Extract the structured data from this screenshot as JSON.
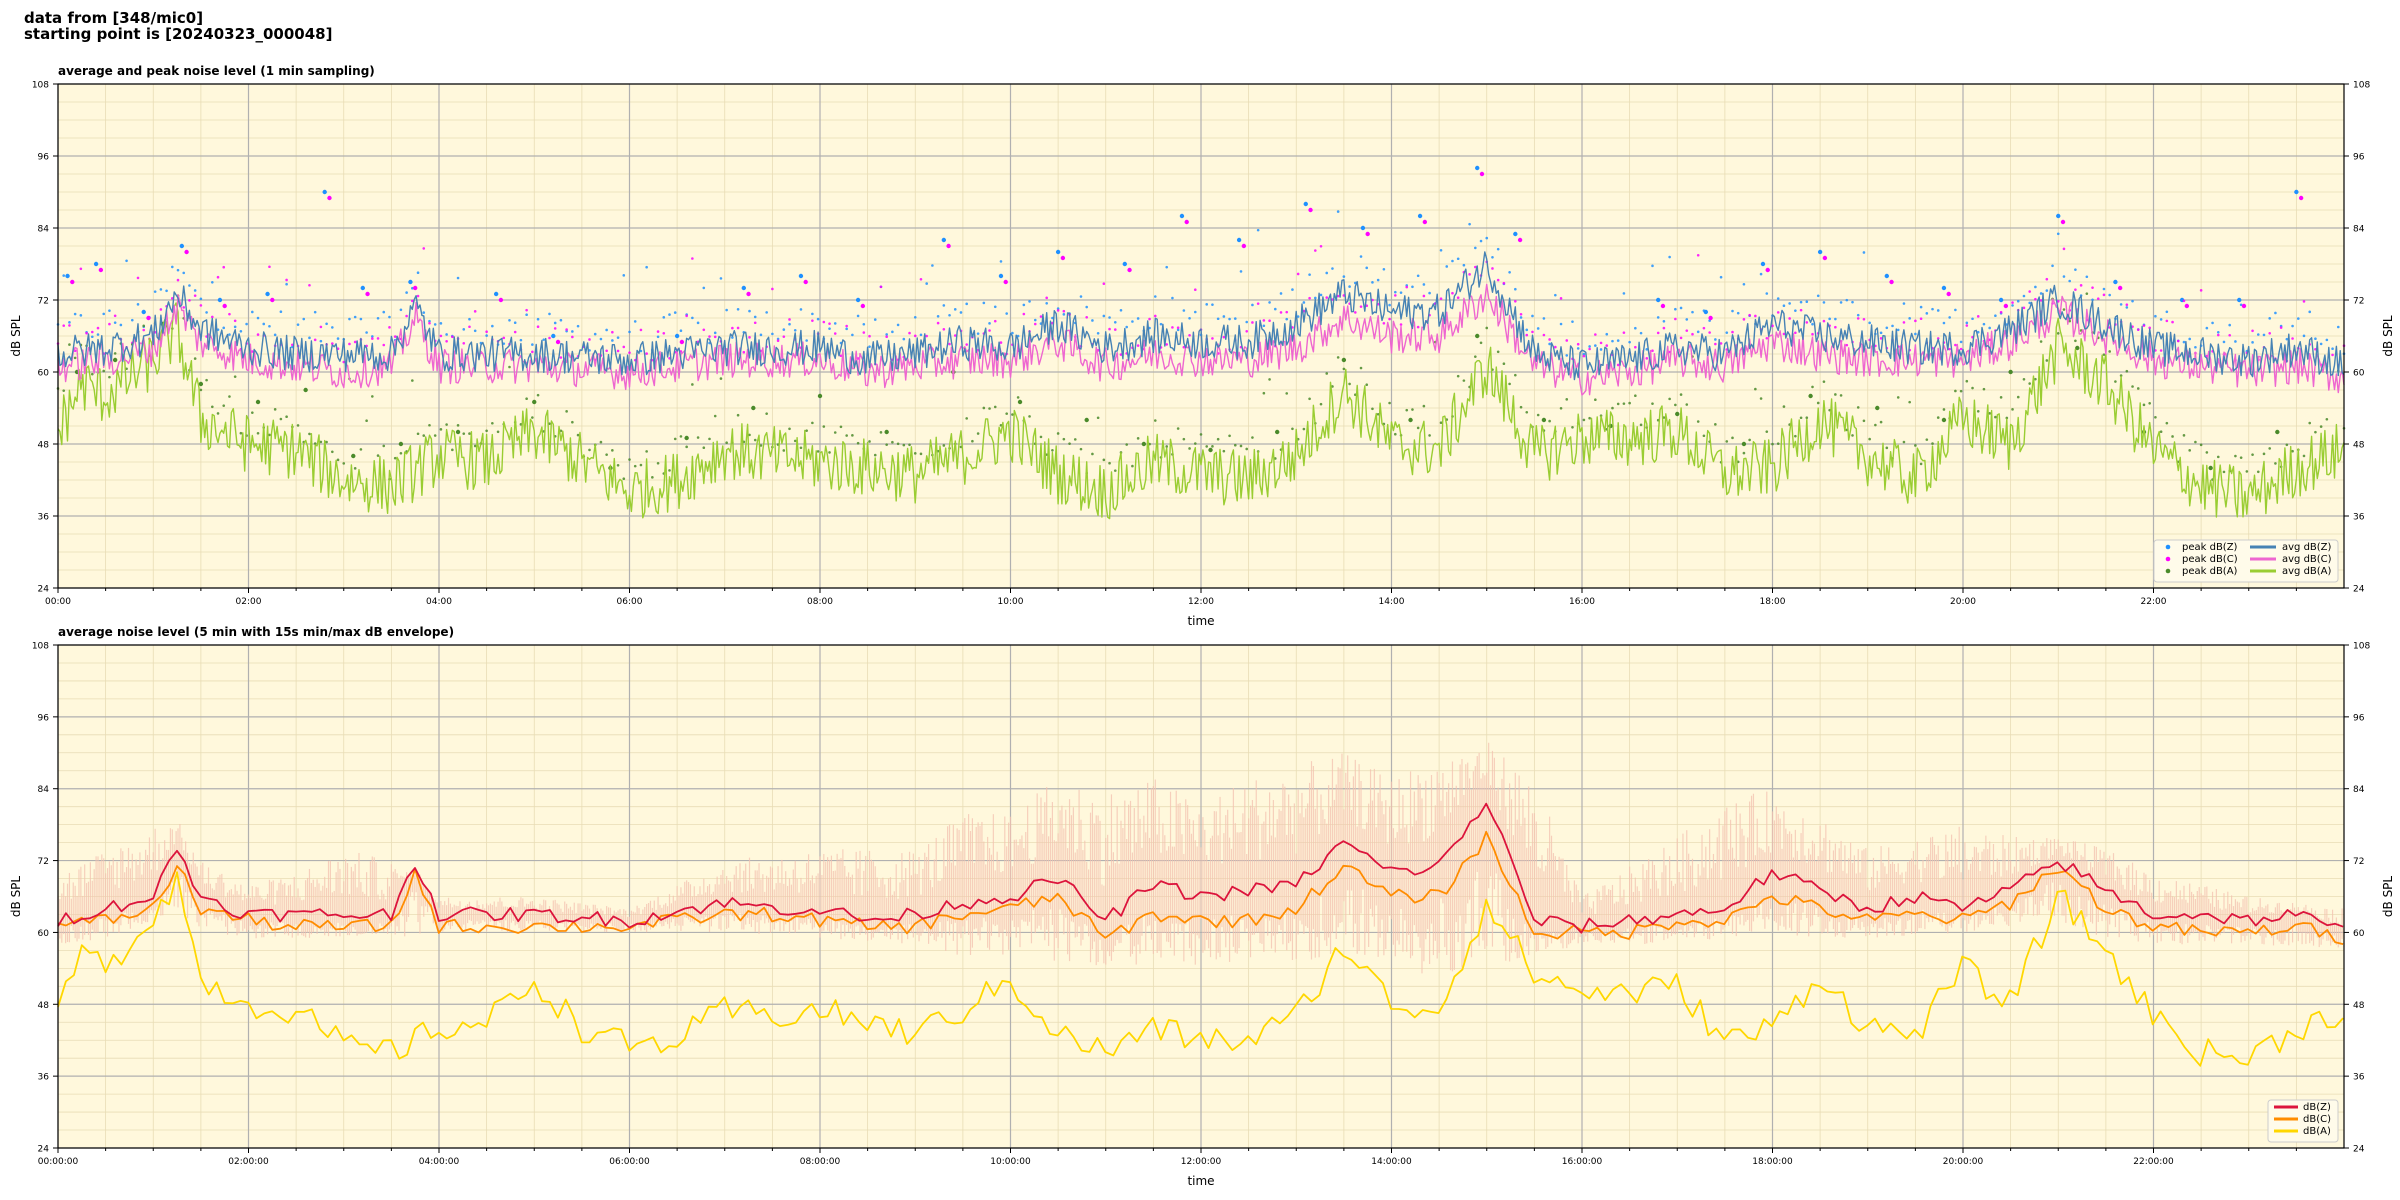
{
  "header": {
    "line1": "data from [348/mic0]",
    "line2": "starting point is [20240323_000048]"
  },
  "colors": {
    "background": "#fff8dc",
    "zavg": "#4682b4",
    "cavg": "#ee66d0",
    "aavg": "#9acd32",
    "zpeak": "#1e90ff",
    "cpeak": "#ff00ff",
    "apeak": "#4a8a2a",
    "z5": "#dc143c",
    "c5": "#ff8c00",
    "a5": "#ffd700",
    "envelope": "#f4c2b0"
  },
  "chart_data": [
    {
      "type": "line",
      "title": "average and peak noise level (1 min sampling)",
      "xlabel": "time",
      "ylabel": "dB SPL",
      "ylim": [
        24,
        108
      ],
      "yticks": [
        "24",
        "36",
        "48",
        "60",
        "72",
        "84",
        "96",
        "108"
      ],
      "xlim_hours": [
        0,
        24
      ],
      "xticks": [
        "00:00",
        "02:00",
        "04:00",
        "06:00",
        "08:00",
        "10:00",
        "12:00",
        "14:00",
        "16:00",
        "18:00",
        "20:00",
        "22:00"
      ],
      "grid": true,
      "legend_position": "bottom-right",
      "legend": {
        "markers": [
          "peak dB(Z)",
          "peak dB(C)",
          "peak dB(A)"
        ],
        "lines": [
          "avg dB(Z)",
          "avg dB(C)",
          "avg dB(A)"
        ]
      },
      "series": [
        {
          "name": "avg dB(Z)",
          "x": [
            0,
            0.5,
            1,
            1.25,
            1.5,
            2,
            2.5,
            3,
            3.5,
            3.75,
            4,
            5,
            6,
            7,
            7.5,
            8,
            8.5,
            9,
            9.5,
            10,
            10.5,
            11,
            11.5,
            12,
            12.5,
            13,
            13.5,
            14,
            14.5,
            15,
            15.5,
            16,
            16.5,
            17,
            17.5,
            18,
            18.5,
            19,
            19.5,
            20,
            20.5,
            21,
            21.5,
            22,
            22.5,
            23,
            23.5,
            24
          ],
          "values": [
            63,
            64,
            66,
            73,
            67,
            64,
            63,
            63,
            63,
            71,
            63,
            63,
            62,
            64,
            64,
            64,
            62,
            63,
            65,
            64,
            68,
            64,
            66,
            65,
            65,
            68,
            73,
            70,
            70,
            78,
            63,
            61,
            62,
            64,
            63,
            68,
            66,
            65,
            64,
            64,
            67,
            72,
            68,
            64,
            63,
            62,
            64,
            61
          ]
        },
        {
          "name": "avg dB(C)",
          "x": [
            0,
            0.5,
            1,
            1.25,
            1.5,
            2,
            2.5,
            3,
            3.5,
            3.75,
            4,
            5,
            6,
            7,
            7.5,
            8,
            8.5,
            9,
            9.5,
            10,
            10.5,
            11,
            11.5,
            12,
            12.5,
            13,
            13.5,
            14,
            14.5,
            15,
            15.5,
            16,
            16.5,
            17,
            17.5,
            18,
            18.5,
            19,
            19.5,
            20,
            20.5,
            21,
            21.5,
            22,
            22.5,
            23,
            23.5,
            24
          ],
          "values": [
            61,
            62,
            64,
            71,
            65,
            62,
            61,
            60,
            61,
            69,
            61,
            61,
            60,
            62,
            62,
            62,
            60,
            61,
            62,
            62,
            65,
            61,
            63,
            62,
            62,
            64,
            69,
            66,
            66,
            73,
            61,
            59,
            60,
            62,
            61,
            65,
            63,
            62,
            62,
            62,
            65,
            70,
            66,
            62,
            61,
            60,
            61,
            59
          ]
        },
        {
          "name": "avg dB(A)",
          "x": [
            0,
            0.25,
            0.5,
            0.75,
            1,
            1.25,
            1.5,
            2,
            2.5,
            3,
            3.5,
            4,
            4.5,
            5,
            5.5,
            6,
            6.5,
            7,
            7.5,
            8,
            8.5,
            9,
            9.5,
            10,
            10.5,
            11,
            11.5,
            12,
            12.5,
            13,
            13.5,
            14,
            14.5,
            15,
            15.5,
            16,
            16.5,
            17,
            17.5,
            18,
            18.5,
            19,
            19.5,
            20,
            20.5,
            21,
            21.5,
            22,
            22.5,
            23,
            23.5,
            24
          ],
          "values": [
            50,
            58,
            56,
            59,
            62,
            67,
            52,
            48,
            47,
            42,
            41,
            46,
            45,
            50,
            45,
            40,
            42,
            47,
            46,
            45,
            44,
            43,
            46,
            50,
            43,
            40,
            45,
            43,
            42,
            46,
            57,
            48,
            47,
            61,
            46,
            49,
            49,
            50,
            43,
            44,
            52,
            46,
            42,
            52,
            48,
            64,
            58,
            47,
            41,
            39,
            44,
            47
          ]
        },
        {
          "name": "peak dB(Z)",
          "x": [
            0.1,
            0.4,
            0.9,
            1.3,
            1.7,
            2.2,
            2.8,
            3.2,
            3.7,
            4.6,
            5.2,
            6.5,
            7.2,
            7.8,
            8.4,
            9.3,
            9.9,
            10.5,
            11.2,
            11.8,
            12.4,
            13.1,
            13.7,
            14.3,
            14.9,
            15.3,
            16.8,
            17.3,
            17.9,
            18.5,
            19.2,
            19.8,
            20.4,
            21.0,
            21.6,
            22.3,
            22.9,
            23.5
          ],
          "values": [
            76,
            78,
            70,
            81,
            72,
            73,
            90,
            74,
            75,
            73,
            66,
            66,
            74,
            76,
            72,
            82,
            76,
            80,
            78,
            86,
            82,
            88,
            84,
            86,
            94,
            83,
            72,
            70,
            78,
            80,
            76,
            74,
            72,
            86,
            75,
            72,
            72,
            90
          ]
        },
        {
          "name": "peak dB(C)",
          "x": [
            0.15,
            0.45,
            0.95,
            1.35,
            1.75,
            2.25,
            2.85,
            3.25,
            3.75,
            4.65,
            5.25,
            6.55,
            7.25,
            7.85,
            8.45,
            9.35,
            9.95,
            10.55,
            11.25,
            11.85,
            12.45,
            13.15,
            13.75,
            14.35,
            14.95,
            15.35,
            16.85,
            17.35,
            17.95,
            18.55,
            19.25,
            19.85,
            20.45,
            21.05,
            21.65,
            22.35,
            22.95,
            23.55
          ],
          "values": [
            75,
            77,
            69,
            80,
            71,
            72,
            89,
            73,
            74,
            72,
            65,
            65,
            73,
            75,
            71,
            81,
            75,
            79,
            77,
            85,
            81,
            87,
            83,
            85,
            93,
            82,
            71,
            69,
            77,
            79,
            75,
            73,
            71,
            85,
            74,
            71,
            71,
            89
          ]
        },
        {
          "name": "peak dB(A)",
          "x": [
            0.2,
            0.6,
            1.1,
            1.5,
            2.1,
            2.6,
            3.1,
            3.6,
            4.2,
            5.0,
            5.8,
            6.6,
            7.3,
            8.0,
            8.7,
            9.4,
            10.1,
            10.8,
            11.4,
            12.1,
            12.8,
            13.5,
            14.2,
            14.9,
            15.6,
            16.3,
            17.0,
            17.7,
            18.4,
            19.1,
            19.8,
            20.5,
            21.2,
            21.9,
            22.6,
            23.3
          ],
          "values": [
            60,
            62,
            68,
            58,
            55,
            57,
            46,
            48,
            50,
            55,
            44,
            49,
            54,
            56,
            50,
            60,
            55,
            52,
            48,
            47,
            50,
            62,
            52,
            66,
            52,
            51,
            53,
            48,
            56,
            54,
            52,
            60,
            64,
            50,
            44,
            50
          ]
        }
      ]
    },
    {
      "type": "area",
      "title": "average noise level (5 min with 15s min/max dB envelope)",
      "xlabel": "time",
      "ylabel": "dB SPL",
      "ylim": [
        24,
        108
      ],
      "yticks": [
        "24",
        "36",
        "48",
        "60",
        "72",
        "84",
        "96",
        "108"
      ],
      "xlim_hours": [
        0,
        24
      ],
      "xticks": [
        "00:00:00",
        "02:00:00",
        "04:00:00",
        "06:00:00",
        "08:00:00",
        "10:00:00",
        "12:00:00",
        "14:00:00",
        "16:00:00",
        "18:00:00",
        "20:00:00",
        "22:00:00"
      ],
      "grid": true,
      "legend_position": "bottom-right",
      "legend": {
        "lines": [
          "dB(Z)",
          "dB(C)",
          "dB(A)"
        ]
      },
      "envelope": {
        "x": [
          0,
          0.5,
          1,
          1.25,
          1.5,
          2,
          2.5,
          3,
          3.5,
          4,
          5,
          6,
          7,
          8,
          9,
          9.5,
          10,
          10.5,
          11,
          11.5,
          12,
          12.5,
          13,
          13.5,
          14,
          14.5,
          15,
          15.5,
          16,
          17,
          17.5,
          18,
          18.5,
          19,
          20,
          20.5,
          21,
          21.5,
          22,
          23,
          24
        ],
        "min": [
          58,
          59,
          62,
          64,
          60,
          59,
          59,
          59,
          59,
          60,
          60,
          60,
          60,
          59,
          58,
          56,
          56,
          55,
          54,
          55,
          54,
          55,
          55,
          56,
          53,
          53,
          54,
          56,
          58,
          58,
          59,
          60,
          59,
          59,
          60,
          61,
          62,
          59,
          58,
          58,
          57
        ],
        "max": [
          70,
          74,
          78,
          79,
          72,
          68,
          70,
          74,
          72,
          66,
          66,
          64,
          72,
          74,
          74,
          80,
          80,
          86,
          84,
          86,
          82,
          86,
          88,
          90,
          86,
          90,
          92,
          86,
          66,
          76,
          82,
          84,
          80,
          74,
          78,
          76,
          76,
          74,
          70,
          66,
          64
        ]
      },
      "series": [
        {
          "name": "dB(Z)",
          "x": [
            0,
            0.5,
            1,
            1.25,
            1.5,
            2,
            2.5,
            3,
            3.5,
            3.75,
            4,
            5,
            6,
            7,
            7.5,
            8,
            8.5,
            9,
            9.5,
            10,
            10.5,
            11,
            11.5,
            12,
            12.5,
            13,
            13.5,
            14,
            14.5,
            15,
            15.5,
            16,
            16.5,
            17,
            17.5,
            18,
            18.5,
            19,
            19.5,
            20,
            20.5,
            21,
            21.5,
            22,
            22.5,
            23,
            23.5,
            24
          ],
          "values": [
            62,
            64,
            66,
            74,
            66,
            63,
            63,
            63,
            63,
            72,
            63,
            63,
            62,
            65,
            64,
            64,
            62,
            63,
            65,
            66,
            69,
            62,
            68,
            66,
            67,
            68,
            75,
            70,
            71,
            82,
            62,
            61,
            62,
            63,
            64,
            70,
            67,
            64,
            66,
            64,
            67,
            72,
            67,
            63,
            63,
            62,
            63,
            60
          ]
        },
        {
          "name": "dB(C)",
          "x": [
            0,
            0.5,
            1,
            1.25,
            1.5,
            2,
            2.5,
            3,
            3.5,
            3.75,
            4,
            5,
            6,
            7,
            7.5,
            8,
            8.5,
            9,
            9.5,
            10,
            10.5,
            11,
            11.5,
            12,
            12.5,
            13,
            13.5,
            14,
            14.5,
            15,
            15.5,
            16,
            16.5,
            17,
            17.5,
            18,
            18.5,
            19,
            19.5,
            20,
            20.5,
            21,
            21.5,
            22,
            22.5,
            23,
            23.5,
            24
          ],
          "values": [
            61,
            62,
            64,
            71,
            64,
            62,
            61,
            61,
            61,
            70,
            61,
            61,
            61,
            63,
            63,
            62,
            61,
            61,
            63,
            64,
            66,
            59,
            63,
            62,
            62,
            64,
            71,
            66,
            66,
            76,
            60,
            60,
            60,
            62,
            62,
            66,
            64,
            62,
            63,
            62,
            65,
            71,
            64,
            61,
            60,
            60,
            61,
            59
          ]
        },
        {
          "name": "dB(A)",
          "x": [
            0,
            0.25,
            0.5,
            0.75,
            1,
            1.25,
            1.5,
            2,
            2.5,
            3,
            3.5,
            4,
            4.5,
            5,
            5.5,
            6,
            6.5,
            7,
            7.5,
            8,
            8.5,
            9,
            9.5,
            10,
            10.5,
            11,
            11.5,
            12,
            12.5,
            13,
            13.5,
            14,
            14.5,
            15,
            15.5,
            16,
            16.5,
            17,
            17.5,
            18,
            18.5,
            19,
            19.5,
            20,
            20.5,
            21,
            21.5,
            22,
            22.5,
            23,
            23.5,
            24
          ],
          "values": [
            48,
            56,
            55,
            58,
            63,
            69,
            52,
            48,
            47,
            41,
            40,
            44,
            45,
            52,
            44,
            41,
            42,
            47,
            46,
            47,
            45,
            43,
            47,
            52,
            43,
            40,
            44,
            42,
            42,
            46,
            58,
            48,
            47,
            65,
            53,
            50,
            50,
            51,
            42,
            44,
            53,
            44,
            43,
            54,
            48,
            66,
            57,
            46,
            40,
            39,
            44,
            47
          ]
        }
      ]
    }
  ]
}
